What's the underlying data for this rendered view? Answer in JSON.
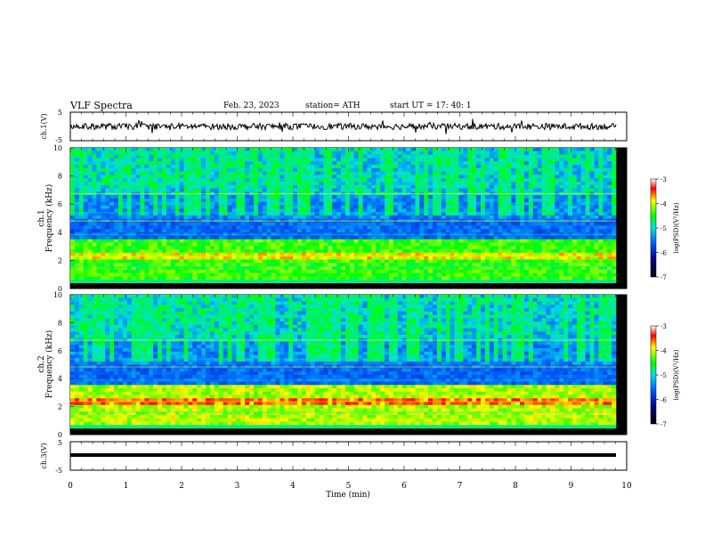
{
  "header": {
    "title": "VLF  Spectra",
    "date": "Feb. 23, 2023",
    "station": "station= ATH",
    "start": "start  UT  =    17: 40: 1"
  },
  "chart_data": [
    {
      "type": "line",
      "panel": "ch1-waveform",
      "ylabel": "ch.1(V)",
      "ylim": [
        -5,
        5
      ],
      "yticks": [
        "5",
        "-5"
      ],
      "xlim": [
        0,
        10
      ],
      "series": [
        {
          "values_note_range": [
            -1.5,
            1.5
          ]
        }
      ]
    },
    {
      "type": "heatmap",
      "panel": "ch1-spectrogram",
      "ylabel": "ch.1\nFrequency  (kHz)",
      "ylabel_line1": "ch.1",
      "ylabel_line2": "Frequency  (kHz)",
      "ylim": [
        0,
        10
      ],
      "yticks": [
        "0",
        "2",
        "4",
        "6",
        "8",
        "10"
      ],
      "xlim": [
        0,
        10
      ],
      "colorbar": {
        "label": "log(PSD)(V²/Hz)",
        "range": [
          -7,
          -3
        ],
        "ticks": [
          "-3",
          "-4",
          "-5",
          "-6",
          "-7"
        ]
      }
    },
    {
      "type": "heatmap",
      "panel": "ch2-spectrogram",
      "ylabel_line1": "ch.2",
      "ylabel_line2": "Frequency  (kHz)",
      "ylim": [
        0,
        10
      ],
      "yticks": [
        "0",
        "2",
        "4",
        "6",
        "8",
        "10"
      ],
      "xlim": [
        0,
        10
      ],
      "colorbar": {
        "label": "log(PSD)(V²/Hz)",
        "range": [
          -7,
          -3
        ],
        "ticks": [
          "-3",
          "-4",
          "-5",
          "-6",
          "-7"
        ]
      }
    },
    {
      "type": "line",
      "panel": "ch3-waveform",
      "ylabel": "ch.3(V)",
      "ylim": [
        -5,
        5
      ],
      "yticks": [
        "5",
        "-5"
      ],
      "xlim": [
        0,
        10
      ],
      "series": [
        {
          "values_note_constant": -2
        }
      ]
    }
  ],
  "xaxis": {
    "label": "Time  (min)",
    "ticks": [
      "0",
      "1",
      "2",
      "3",
      "4",
      "5",
      "6",
      "7",
      "8",
      "9",
      "10"
    ]
  },
  "colors": {
    "spectro_low": "#00008b",
    "spectro_mid": "#00e0ff",
    "spectro_high": "#ffff00"
  }
}
